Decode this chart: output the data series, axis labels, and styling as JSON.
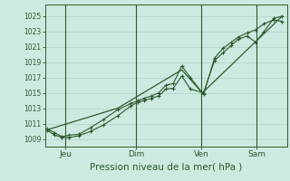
{
  "xlabel": "Pression niveau de la mer( hPa )",
  "bg_color": "#cdeae0",
  "grid_color": "#b0d8cc",
  "line_color": "#2d5a2d",
  "ylim": [
    1008.0,
    1026.5
  ],
  "xlim": [
    0,
    1.0
  ],
  "yticks": [
    1009,
    1011,
    1013,
    1015,
    1017,
    1019,
    1021,
    1023,
    1025
  ],
  "day_positions": [
    0.085,
    0.375,
    0.645,
    0.875
  ],
  "day_labels": [
    "Jeu",
    "Dim",
    "Ven",
    "Sam"
  ],
  "vline_positions": [
    0.085,
    0.375,
    0.645,
    0.875
  ],
  "series1_x": [
    0.01,
    0.04,
    0.07,
    0.1,
    0.14,
    0.19,
    0.24,
    0.3,
    0.355,
    0.385,
    0.41,
    0.44,
    0.47,
    0.5,
    0.53,
    0.565,
    0.6,
    0.655,
    0.7,
    0.735,
    0.77,
    0.8,
    0.835,
    0.87,
    0.905,
    0.945,
    0.98
  ],
  "series1_y": [
    1010.1,
    1009.5,
    1009.2,
    1009.2,
    1009.4,
    1010.0,
    1010.8,
    1012.0,
    1013.3,
    1013.8,
    1014.0,
    1014.3,
    1014.6,
    1015.5,
    1015.6,
    1017.2,
    1015.5,
    1015.0,
    1019.2,
    1020.2,
    1021.2,
    1022.0,
    1022.4,
    1021.6,
    1023.0,
    1024.7,
    1025.0
  ],
  "series2_x": [
    0.01,
    0.04,
    0.07,
    0.1,
    0.14,
    0.19,
    0.24,
    0.3,
    0.355,
    0.385,
    0.41,
    0.44,
    0.47,
    0.5,
    0.53,
    0.565,
    0.6,
    0.655,
    0.7,
    0.735,
    0.77,
    0.8,
    0.835,
    0.87,
    0.905,
    0.945,
    0.98
  ],
  "series2_y": [
    1010.3,
    1009.8,
    1009.3,
    1009.5,
    1009.6,
    1010.5,
    1011.5,
    1012.8,
    1013.6,
    1014.0,
    1014.3,
    1014.6,
    1015.0,
    1016.0,
    1016.2,
    1018.5,
    1017.0,
    1014.8,
    1019.5,
    1020.8,
    1021.6,
    1022.3,
    1022.8,
    1023.2,
    1024.0,
    1024.5,
    1024.3
  ],
  "series3_x": [
    0.01,
    0.3,
    0.565,
    0.65,
    0.98
  ],
  "series3_y": [
    1010.2,
    1013.0,
    1018.0,
    1015.0,
    1025.0
  ]
}
